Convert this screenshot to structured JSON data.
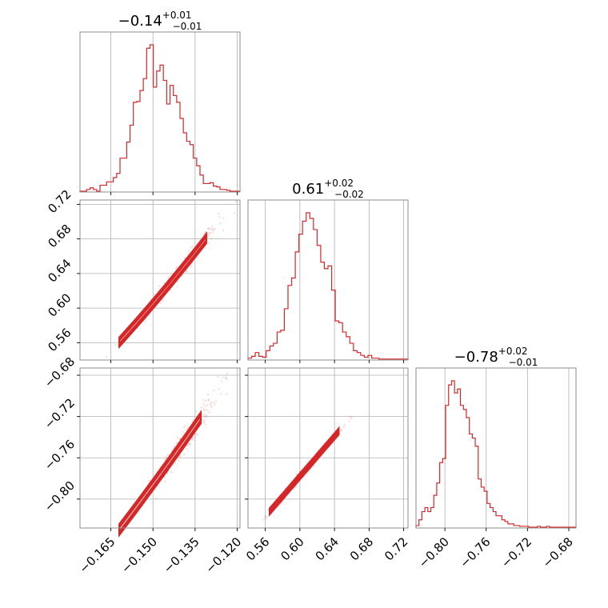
{
  "colors": {
    "series": "#d62728",
    "frame": "#8c8c8c",
    "grid": "#b0b0b0"
  },
  "chart_data": {
    "type": "corner",
    "parameters": [
      {
        "index": 0,
        "title": {
          "median": "−0.14",
          "plus": "+0.01",
          "minus": "−0.01"
        },
        "range": [
          -0.176,
          -0.119
        ],
        "ticks": [
          -0.165,
          -0.15,
          -0.135,
          -0.12
        ],
        "tick_labels": [
          "−0.165",
          "−0.150",
          "−0.135",
          "−0.120"
        ],
        "hist_counts": [
          1,
          1,
          3,
          5,
          3,
          1,
          8,
          8,
          12,
          12,
          17,
          22,
          40,
          40,
          59,
          79,
          106,
          107,
          120,
          134,
          170,
          174,
          124,
          143,
          150,
          132,
          104,
          126,
          114,
          106,
          87,
          70,
          60,
          56,
          40,
          31,
          20,
          10,
          10,
          11,
          7,
          6,
          3,
          3,
          2,
          1,
          1,
          1
        ]
      },
      {
        "index": 1,
        "title": {
          "median": "0.61",
          "plus": "+0.02",
          "minus": "−0.02"
        },
        "range": [
          0.54,
          0.725
        ],
        "ticks": [
          0.56,
          0.6,
          0.64,
          0.68,
          0.72
        ],
        "tick_labels": [
          "0.56",
          "0.60",
          "0.64",
          "0.68",
          "0.72"
        ],
        "hist_counts": [
          2,
          4,
          8,
          4,
          3,
          10,
          15,
          18,
          30,
          32,
          55,
          80,
          88,
          116,
          135,
          149,
          158,
          152,
          140,
          123,
          105,
          98,
          101,
          75,
          42,
          40,
          30,
          25,
          18,
          10,
          8,
          5,
          3,
          5,
          2,
          2,
          1,
          1,
          1,
          1,
          1,
          1,
          1,
          1
        ]
      },
      {
        "index": 2,
        "title": {
          "median": "−0.78",
          "plus": "+0.02",
          "minus": "−0.01"
        },
        "range": [
          -0.828,
          -0.673
        ],
        "ticks": [
          -0.8,
          -0.76,
          -0.72,
          -0.68
        ],
        "tick_labels": [
          "−0.80",
          "−0.76",
          "−0.72",
          "−0.68"
        ],
        "hist_counts": [
          3,
          10,
          20,
          25,
          20,
          25,
          40,
          55,
          80,
          85,
          150,
          175,
          180,
          165,
          170,
          150,
          145,
          135,
          115,
          110,
          100,
          60,
          50,
          45,
          30,
          25,
          20,
          15,
          15,
          10,
          8,
          5,
          5,
          3,
          3,
          2,
          2,
          2,
          1,
          1,
          1,
          2,
          1,
          1,
          2,
          1,
          1,
          1,
          1,
          1,
          1,
          1,
          1,
          1
        ]
      }
    ],
    "relations": {
      "p1_vs_p0": {
        "slope": 3.8,
        "intercept": 1.175,
        "ref_x": -0.15
      },
      "p2_vs_p0": {
        "slope": 3.7,
        "intercept": -0.231
      },
      "p2_vs_p1": {
        "slope": 0.97,
        "intercept": -1.36
      }
    },
    "contour_levels": 3,
    "grid": true
  }
}
